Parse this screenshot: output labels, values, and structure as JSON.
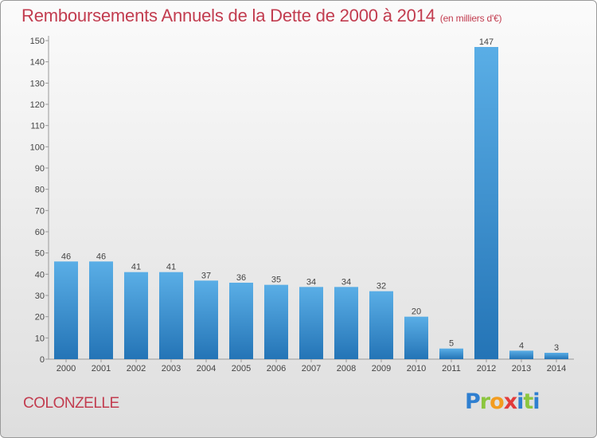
{
  "title": "Remboursements Annuels de la Dette de 2000 à 2014",
  "subtitle": "(en milliers d'€)",
  "commune": "COLONZELLE",
  "logo": {
    "p": "P",
    "r": "r",
    "o": "o",
    "x": "x",
    "i": "i",
    "t": "t",
    "i2": "i"
  },
  "colors": {
    "bar_light": "#5aaee6",
    "bar_dark": "#2474b6",
    "title": "#c23c4f"
  },
  "chart_data": {
    "type": "bar",
    "title": "Remboursements Annuels de la Dette de 2000 à 2014",
    "ylabel": "(en milliers d'€)",
    "xlabel": "",
    "categories": [
      "2000",
      "2001",
      "2002",
      "2003",
      "2004",
      "2005",
      "2006",
      "2007",
      "2008",
      "2009",
      "2010",
      "2011",
      "2012",
      "2013",
      "2014"
    ],
    "values": [
      46,
      46,
      41,
      41,
      37,
      36,
      35,
      34,
      34,
      32,
      20,
      5,
      147,
      4,
      3
    ],
    "ylim": [
      0,
      150
    ],
    "yticks": [
      0,
      10,
      20,
      30,
      40,
      50,
      60,
      70,
      80,
      90,
      100,
      110,
      120,
      130,
      140,
      150
    ],
    "grid": false,
    "legend": "none"
  }
}
